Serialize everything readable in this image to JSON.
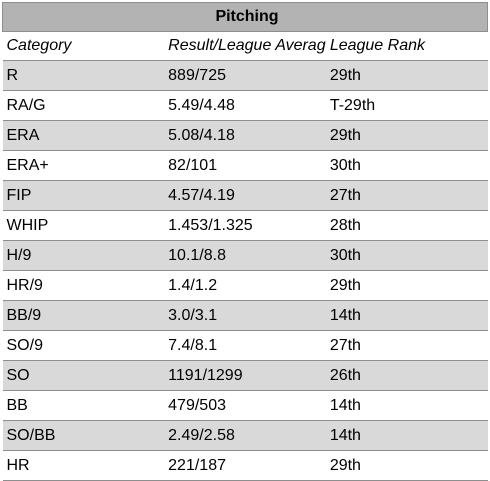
{
  "title": "Pitching",
  "headers": {
    "category": "Category",
    "result": "Result/League Average",
    "rank": "League Rank"
  },
  "rows": [
    {
      "category": "R",
      "result": "889/725",
      "rank": "29th"
    },
    {
      "category": "RA/G",
      "result": "5.49/4.48",
      "rank": "T-29th"
    },
    {
      "category": "ERA",
      "result": "5.08/4.18",
      "rank": "29th"
    },
    {
      "category": "ERA+",
      "result": "82/101",
      "rank": "30th"
    },
    {
      "category": "FIP",
      "result": "4.57/4.19",
      "rank": "27th"
    },
    {
      "category": "WHIP",
      "result": "1.453/1.325",
      "rank": "28th"
    },
    {
      "category": "H/9",
      "result": "10.1/8.8",
      "rank": "30th"
    },
    {
      "category": "HR/9",
      "result": "1.4/1.2",
      "rank": "29th"
    },
    {
      "category": "BB/9",
      "result": "3.0/3.1",
      "rank": "14th"
    },
    {
      "category": "SO/9",
      "result": "7.4/8.1",
      "rank": "27th"
    },
    {
      "category": "SO",
      "result": "1191/1299",
      "rank": "26th"
    },
    {
      "category": "BB",
      "result": "479/503",
      "rank": "14th"
    },
    {
      "category": "SO/BB",
      "result": "2.49/2.58",
      "rank": "14th"
    },
    {
      "category": "HR",
      "result": "221/187",
      "rank": "29th"
    }
  ],
  "colors": {
    "title_fill": "#b3b3b3",
    "shaded_row_fill": "#d9d9d9",
    "plain_row_fill": "#ffffff",
    "grid_line": "#8e8e8e"
  }
}
